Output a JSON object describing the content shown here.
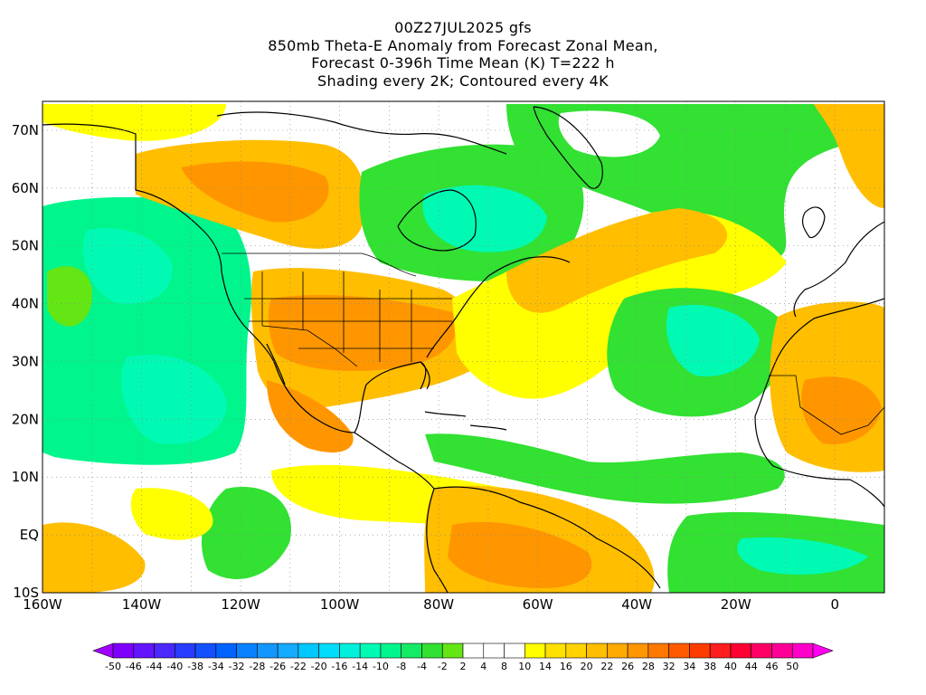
{
  "title": {
    "line1": "00Z27JUL2025 gfs",
    "line2": "850mb Theta-E Anomaly from Forecast Zonal Mean,",
    "line3": "Forecast 0-396h Time Mean (K) T=222 h",
    "line4": "Shading every 2K; Contoured every 4K"
  },
  "map": {
    "lon_range": [
      -160,
      10
    ],
    "lat_range": [
      -10,
      75
    ],
    "lon_ticks": [
      "160W",
      "140W",
      "120W",
      "100W",
      "80W",
      "60W",
      "40W",
      "20W",
      "0"
    ],
    "lat_ticks": [
      "10S",
      "EQ",
      "10N",
      "20N",
      "30N",
      "40N",
      "50N",
      "60N",
      "70N"
    ],
    "grid": true
  },
  "colorbar": {
    "labels": [
      "-50",
      "-46",
      "-44",
      "-40",
      "-38",
      "-34",
      "-32",
      "-28",
      "-26",
      "-22",
      "-20",
      "-16",
      "-14",
      "-10",
      "-8",
      "-4",
      "-2",
      "2",
      "4",
      "8",
      "10",
      "14",
      "16",
      "20",
      "22",
      "26",
      "28",
      "32",
      "34",
      "38",
      "40",
      "44",
      "46",
      "50"
    ],
    "colors": [
      "#a000ff",
      "#7f00ff",
      "#6414ff",
      "#4b28ff",
      "#283cff",
      "#1450ff",
      "#0064ff",
      "#0a82ff",
      "#1496ff",
      "#14aaff",
      "#00c8ff",
      "#00dcfa",
      "#00f0dc",
      "#00fab4",
      "#00f58c",
      "#14eb64",
      "#32e132",
      "#64e614",
      "#ffffff",
      "#ffffff",
      "#ffffff",
      "#ffff00",
      "#ffe100",
      "#ffd200",
      "#ffbe00",
      "#ffaa00",
      "#ff9600",
      "#ff7800",
      "#ff5a00",
      "#ff3c00",
      "#ff1e1e",
      "#ff0032",
      "#ff0064",
      "#ff0096",
      "#ff00c8",
      "#ff00f0"
    ]
  },
  "colors": {
    "land_border": "#000000",
    "warm_orange": "#ff9600",
    "warm_light_orange": "#ffbe00",
    "yellow": "#ffff00",
    "green": "#32e132",
    "light_green": "#64e614",
    "aqua": "#00fab4",
    "cyan": "#00f0dc"
  }
}
